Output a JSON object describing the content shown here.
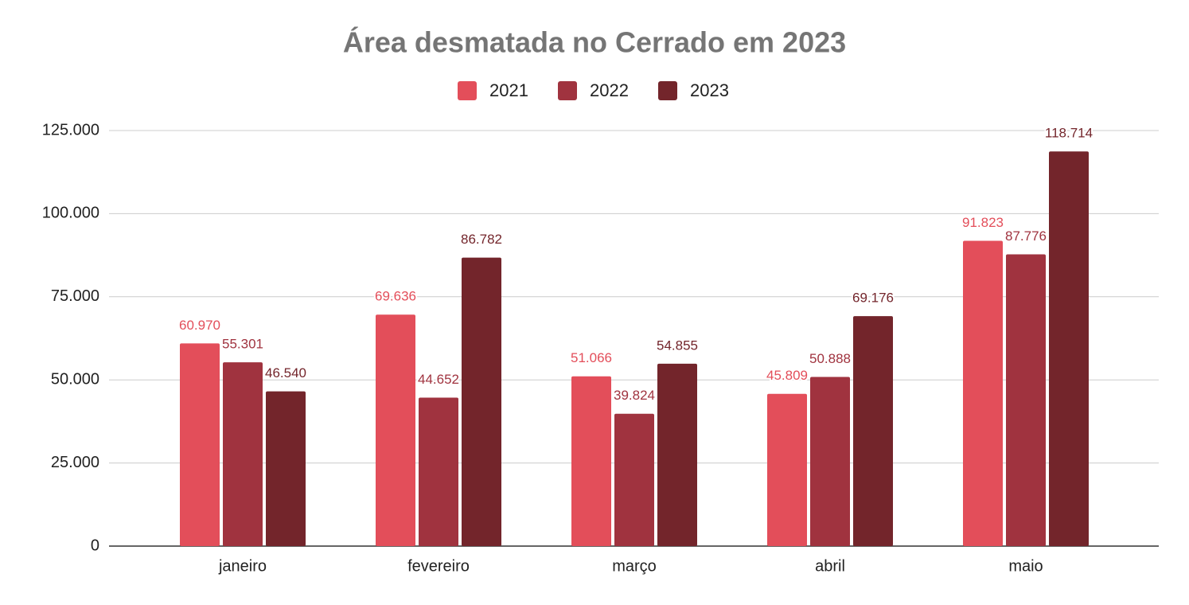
{
  "chart_data": {
    "type": "bar",
    "title": "Área desmatada no Cerrado em 2023",
    "categories": [
      "janeiro",
      "fevereiro",
      "março",
      "abril",
      "maio"
    ],
    "series": [
      {
        "name": "2021",
        "color": "#e34e5a",
        "values": [
          60970,
          69636,
          51066,
          45809,
          91823
        ],
        "value_labels": [
          "60.970",
          "69.636",
          "51.066",
          "45.809",
          "91.823"
        ]
      },
      {
        "name": "2022",
        "color": "#a0333f",
        "values": [
          55301,
          44652,
          39824,
          50888,
          87776
        ],
        "value_labels": [
          "55.301",
          "44.652",
          "39.824",
          "50.888",
          "87.776"
        ]
      },
      {
        "name": "2023",
        "color": "#73252b",
        "values": [
          46540,
          86782,
          54855,
          69176,
          118714
        ],
        "value_labels": [
          "46.540",
          "86.782",
          "54.855",
          "69.176",
          "118.714"
        ]
      }
    ],
    "ylim": [
      0,
      125000
    ],
    "yticks": [
      0,
      {
        "value": 25000,
        "label": "25.000"
      },
      {
        "value": 50000,
        "label": "50.000"
      },
      {
        "value": 75000,
        "label": "75.000"
      },
      {
        "value": 100000,
        "label": "100.000"
      },
      {
        "value": 125000,
        "label": "125.000"
      }
    ],
    "grid": true,
    "legend": "top"
  }
}
